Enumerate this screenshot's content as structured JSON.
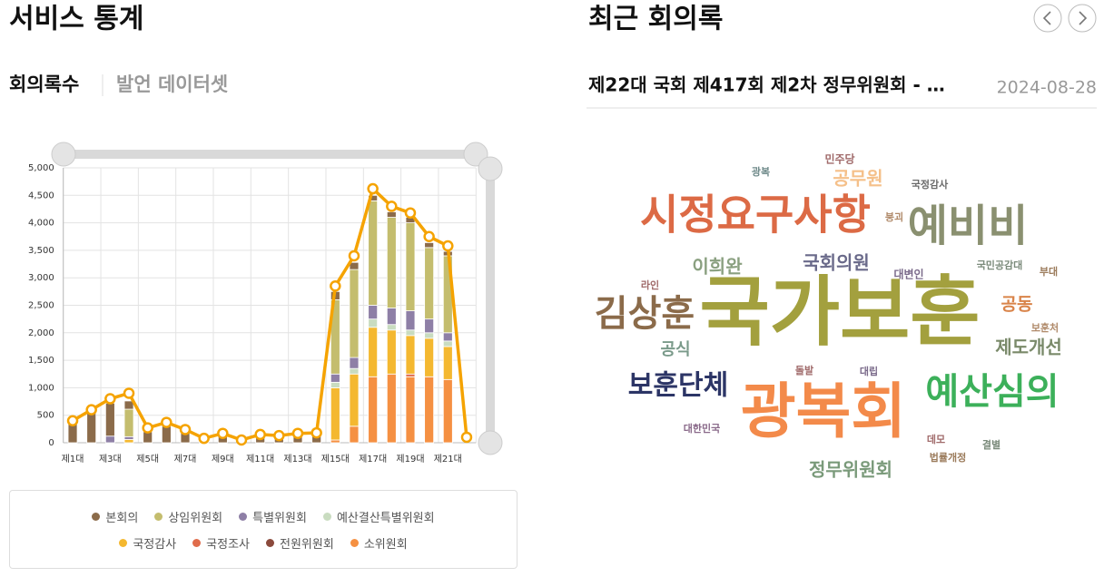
{
  "left": {
    "title": "서비스 통계",
    "tabs": [
      "회의록수",
      "발언 데이터셋"
    ]
  },
  "chart_data": {
    "type": "bar",
    "categories": [
      "제1대",
      null,
      "제3대",
      null,
      "제5대",
      null,
      "제7대",
      null,
      "제9대",
      null,
      "제11대",
      null,
      "제13대",
      null,
      "제15대",
      null,
      "제17대",
      null,
      "제19대",
      null,
      "제21대",
      null
    ],
    "series": [
      {
        "name": "본회의",
        "color": "#8b6b4a",
        "values": [
          380,
          560,
          600,
          150,
          200,
          300,
          200,
          50,
          120,
          30,
          100,
          100,
          130,
          140,
          150,
          130,
          100,
          100,
          100,
          90,
          80,
          0
        ]
      },
      {
        "name": "상임위원회",
        "color": "#c4bd6e",
        "values": [
          0,
          0,
          0,
          500,
          0,
          0,
          0,
          0,
          0,
          0,
          0,
          0,
          0,
          0,
          1350,
          1600,
          1900,
          1650,
          1600,
          1300,
          1400,
          0
        ]
      },
      {
        "name": "특별위원회",
        "color": "#8e7fa6",
        "values": [
          0,
          0,
          120,
          50,
          0,
          0,
          0,
          0,
          0,
          0,
          0,
          0,
          0,
          0,
          150,
          200,
          250,
          300,
          350,
          250,
          150,
          0
        ]
      },
      {
        "name": "예산결산특별위원회",
        "color": "#c9dcc0",
        "values": [
          0,
          0,
          0,
          0,
          0,
          0,
          0,
          0,
          0,
          0,
          0,
          0,
          0,
          0,
          100,
          100,
          150,
          100,
          100,
          100,
          100,
          0
        ]
      },
      {
        "name": "국정감사",
        "color": "#f4b830",
        "values": [
          0,
          0,
          0,
          60,
          0,
          0,
          0,
          0,
          0,
          0,
          0,
          0,
          0,
          0,
          950,
          950,
          900,
          800,
          700,
          700,
          600,
          0
        ]
      },
      {
        "name": "국정조사",
        "color": "#e06c4b",
        "values": [
          0,
          0,
          0,
          0,
          0,
          0,
          0,
          0,
          0,
          0,
          0,
          0,
          0,
          0,
          0,
          0,
          0,
          0,
          50,
          0,
          0,
          0
        ]
      },
      {
        "name": "전원위원회",
        "color": "#8b4a3c",
        "values": [
          0,
          0,
          0,
          0,
          0,
          0,
          0,
          0,
          0,
          0,
          0,
          0,
          0,
          0,
          0,
          0,
          0,
          0,
          0,
          0,
          0,
          0
        ]
      },
      {
        "name": "소위원회",
        "color": "#f59042",
        "values": [
          0,
          0,
          0,
          0,
          0,
          0,
          0,
          0,
          0,
          0,
          0,
          0,
          0,
          0,
          50,
          300,
          1200,
          1250,
          1200,
          1200,
          1150,
          0
        ]
      }
    ],
    "line": {
      "color": "#f5a300",
      "values": [
        400,
        600,
        800,
        900,
        270,
        370,
        240,
        80,
        170,
        50,
        150,
        130,
        170,
        180,
        2850,
        3400,
        4620,
        4300,
        4180,
        3750,
        3580,
        100
      ]
    },
    "ylim": [
      0,
      5000
    ],
    "yticks": [
      0,
      500,
      {
        "value": 1000,
        "label": "1,000"
      },
      {
        "value": 1500,
        "label": "1,500"
      },
      {
        "value": 2000,
        "label": "2,000"
      },
      {
        "value": 2500,
        "label": "2,500"
      },
      {
        "value": 3000,
        "label": "3,000"
      },
      {
        "value": 3500,
        "label": "3,500"
      },
      {
        "value": 4000,
        "label": "4,000"
      },
      {
        "value": 4500,
        "label": "4,500"
      },
      {
        "value": 5000,
        "label": "5,000"
      }
    ],
    "grid": true
  },
  "right": {
    "title": "최근 회의록",
    "item_title": "제22대 국회 제417회 제2차 정무위원회 - …",
    "item_date": "2024-08-28",
    "words": [
      {
        "text": "민주당",
        "color": "#a06a6a"
      },
      {
        "text": "광복",
        "color": "#6f8a8a"
      },
      {
        "text": "공무원",
        "color": "#f5c08a"
      },
      {
        "text": "국정감사",
        "color": "#6a6a6a"
      },
      {
        "text": "시정요구사항",
        "color": "#dc6a45"
      },
      {
        "text": "붕괴",
        "color": "#b08a6a"
      },
      {
        "text": "예비비",
        "color": "#8a9070"
      },
      {
        "text": "이희완",
        "color": "#8aa080"
      },
      {
        "text": "국회의원",
        "color": "#6a6a8a"
      },
      {
        "text": "라인",
        "color": "#a06a6a"
      },
      {
        "text": "대변인",
        "color": "#7a6a8a"
      },
      {
        "text": "국민공감대",
        "color": "#7a8a7a"
      },
      {
        "text": "부대",
        "color": "#9b7b5b"
      },
      {
        "text": "국가보훈",
        "color": "#a3a03e"
      },
      {
        "text": "김상훈",
        "color": "#8b6b4a"
      },
      {
        "text": "공동",
        "color": "#d9844a"
      },
      {
        "text": "보훈처",
        "color": "#b08a6a"
      },
      {
        "text": "공식",
        "color": "#7a9a8a"
      },
      {
        "text": "제도개선",
        "color": "#7a8a6a"
      },
      {
        "text": "돌발",
        "color": "#a06a6a"
      },
      {
        "text": "대립",
        "color": "#7a6a8a"
      },
      {
        "text": "보훈단체",
        "color": "#2c3566"
      },
      {
        "text": "예산심의",
        "color": "#3cb05a"
      },
      {
        "text": "광복회",
        "color": "#f38a4a"
      },
      {
        "text": "대한민국",
        "color": "#8a6a8a"
      },
      {
        "text": "데모",
        "color": "#a06a6a"
      },
      {
        "text": "결별",
        "color": "#7a8a7a"
      },
      {
        "text": "법률개정",
        "color": "#9b7b5b"
      },
      {
        "text": "정무위원회",
        "color": "#7a9a7a"
      }
    ]
  }
}
